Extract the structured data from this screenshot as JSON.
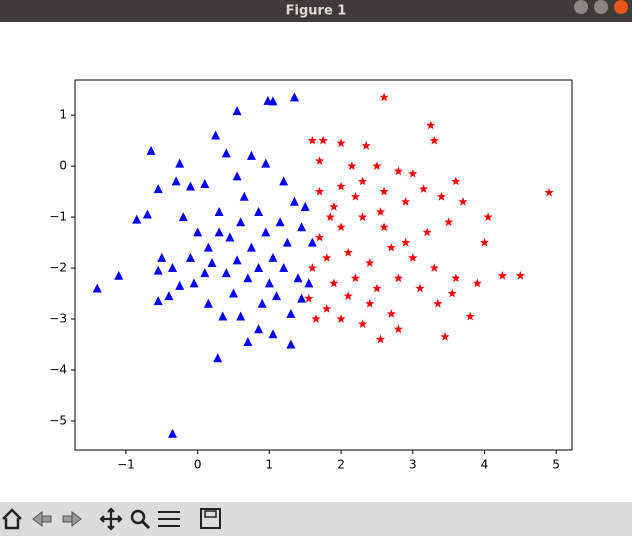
{
  "window": {
    "title": "Figure 1"
  },
  "chart_data": {
    "type": "scatter",
    "xlim": [
      -1.71,
      5.22
    ],
    "ylim": [
      -5.57,
      1.69
    ],
    "xticks": [
      {
        "value": -1,
        "label": "−1"
      },
      0,
      1,
      2,
      3,
      4,
      5
    ],
    "yticks": [
      1,
      0,
      {
        "value": -1,
        "label": "−1"
      },
      {
        "value": -2,
        "label": "−2"
      },
      {
        "value": -3,
        "label": "−3"
      },
      {
        "value": -4,
        "label": "−4"
      },
      {
        "value": -5,
        "label": "−5"
      }
    ],
    "series": [
      {
        "marker": "triangle",
        "color": "#0000ff",
        "x": [
          -1.4,
          -1.1,
          -0.35,
          0.28,
          0.55,
          0.98,
          1.05,
          1.35,
          0.25,
          -0.65,
          -0.25,
          0.4,
          0.55,
          0.75,
          -0.85,
          -0.7,
          -0.55,
          -0.3,
          -0.1,
          0.1,
          -0.55,
          -0.4,
          0.7,
          1.3,
          1.05,
          0.85,
          -0.5,
          -0.55,
          -0.35,
          -0.25,
          -0.05,
          0.15,
          0.35,
          0.6,
          0.9,
          1.1,
          1.3,
          1.45,
          -0.2,
          0.0,
          0.15,
          0.3,
          0.45,
          0.6,
          0.75,
          0.85,
          0.95,
          1.05,
          1.15,
          1.25,
          1.35,
          1.45,
          1.5,
          0.2,
          0.4,
          0.55,
          0.7,
          0.85,
          1.0,
          1.2,
          1.4,
          0.1,
          -0.1,
          0.65,
          1.2,
          0.95,
          1.6,
          1.55,
          0.5,
          0.3
        ],
        "values": [
          -2.4,
          -2.15,
          -5.25,
          -3.77,
          1.08,
          1.28,
          1.27,
          1.35,
          0.6,
          0.3,
          0.05,
          0.25,
          -0.2,
          0.2,
          -1.05,
          -0.95,
          -0.45,
          -0.3,
          -0.4,
          -0.35,
          -2.65,
          -2.55,
          -3.45,
          -3.5,
          -3.3,
          -3.2,
          -1.8,
          -2.05,
          -2.0,
          -2.35,
          -2.3,
          -2.7,
          -2.95,
          -2.95,
          -2.7,
          -2.55,
          -2.9,
          -2.6,
          -1.0,
          -1.3,
          -1.6,
          -0.9,
          -1.4,
          -1.1,
          -1.6,
          -0.9,
          -1.3,
          -1.8,
          -1.1,
          -1.5,
          -0.7,
          -1.2,
          -0.8,
          -1.9,
          -2.1,
          -1.85,
          -2.2,
          -2.0,
          -2.3,
          -2.0,
          -2.2,
          -2.1,
          -1.8,
          -0.6,
          -0.3,
          0.05,
          -1.5,
          -2.3,
          -2.5,
          -1.3
        ]
      },
      {
        "marker": "star",
        "color": "#ff0000",
        "x": [
          4.9,
          4.5,
          2.6,
          3.25,
          3.3,
          3.45,
          2.55,
          4.25,
          4.05,
          3.6,
          3.8,
          1.6,
          1.75,
          2.0,
          2.35,
          1.7,
          2.15,
          2.5,
          2.8,
          3.0,
          2.3,
          2.0,
          1.7,
          1.9,
          2.2,
          2.6,
          2.9,
          3.15,
          3.4,
          3.7,
          3.5,
          3.2,
          2.9,
          2.6,
          2.3,
          2.0,
          1.7,
          1.8,
          2.1,
          2.4,
          2.7,
          3.0,
          3.3,
          3.6,
          3.9,
          3.35,
          3.1,
          2.8,
          2.5,
          2.2,
          1.9,
          1.6,
          1.55,
          1.8,
          2.1,
          2.4,
          2.7,
          2.0,
          2.3,
          2.8,
          3.55,
          4.0,
          1.85,
          2.55,
          1.65
        ],
        "values": [
          -0.52,
          -2.15,
          1.35,
          0.8,
          0.5,
          -3.35,
          -3.4,
          -2.15,
          -1.0,
          -0.3,
          -2.95,
          0.5,
          0.5,
          0.45,
          0.4,
          0.1,
          0.0,
          0.0,
          -0.1,
          -0.15,
          -0.3,
          -0.4,
          -0.5,
          -0.8,
          -0.6,
          -0.5,
          -0.7,
          -0.45,
          -0.6,
          -0.7,
          -1.1,
          -1.3,
          -1.5,
          -1.2,
          -1.0,
          -1.2,
          -1.4,
          -1.8,
          -1.7,
          -1.9,
          -1.6,
          -1.8,
          -2.0,
          -2.2,
          -2.3,
          -2.7,
          -2.4,
          -2.2,
          -2.4,
          -2.2,
          -2.3,
          -2.0,
          -2.6,
          -2.8,
          -2.55,
          -2.7,
          -2.9,
          -3.0,
          -3.1,
          -3.2,
          -2.5,
          -1.5,
          -1.0,
          -0.9,
          -3.0
        ]
      }
    ]
  }
}
